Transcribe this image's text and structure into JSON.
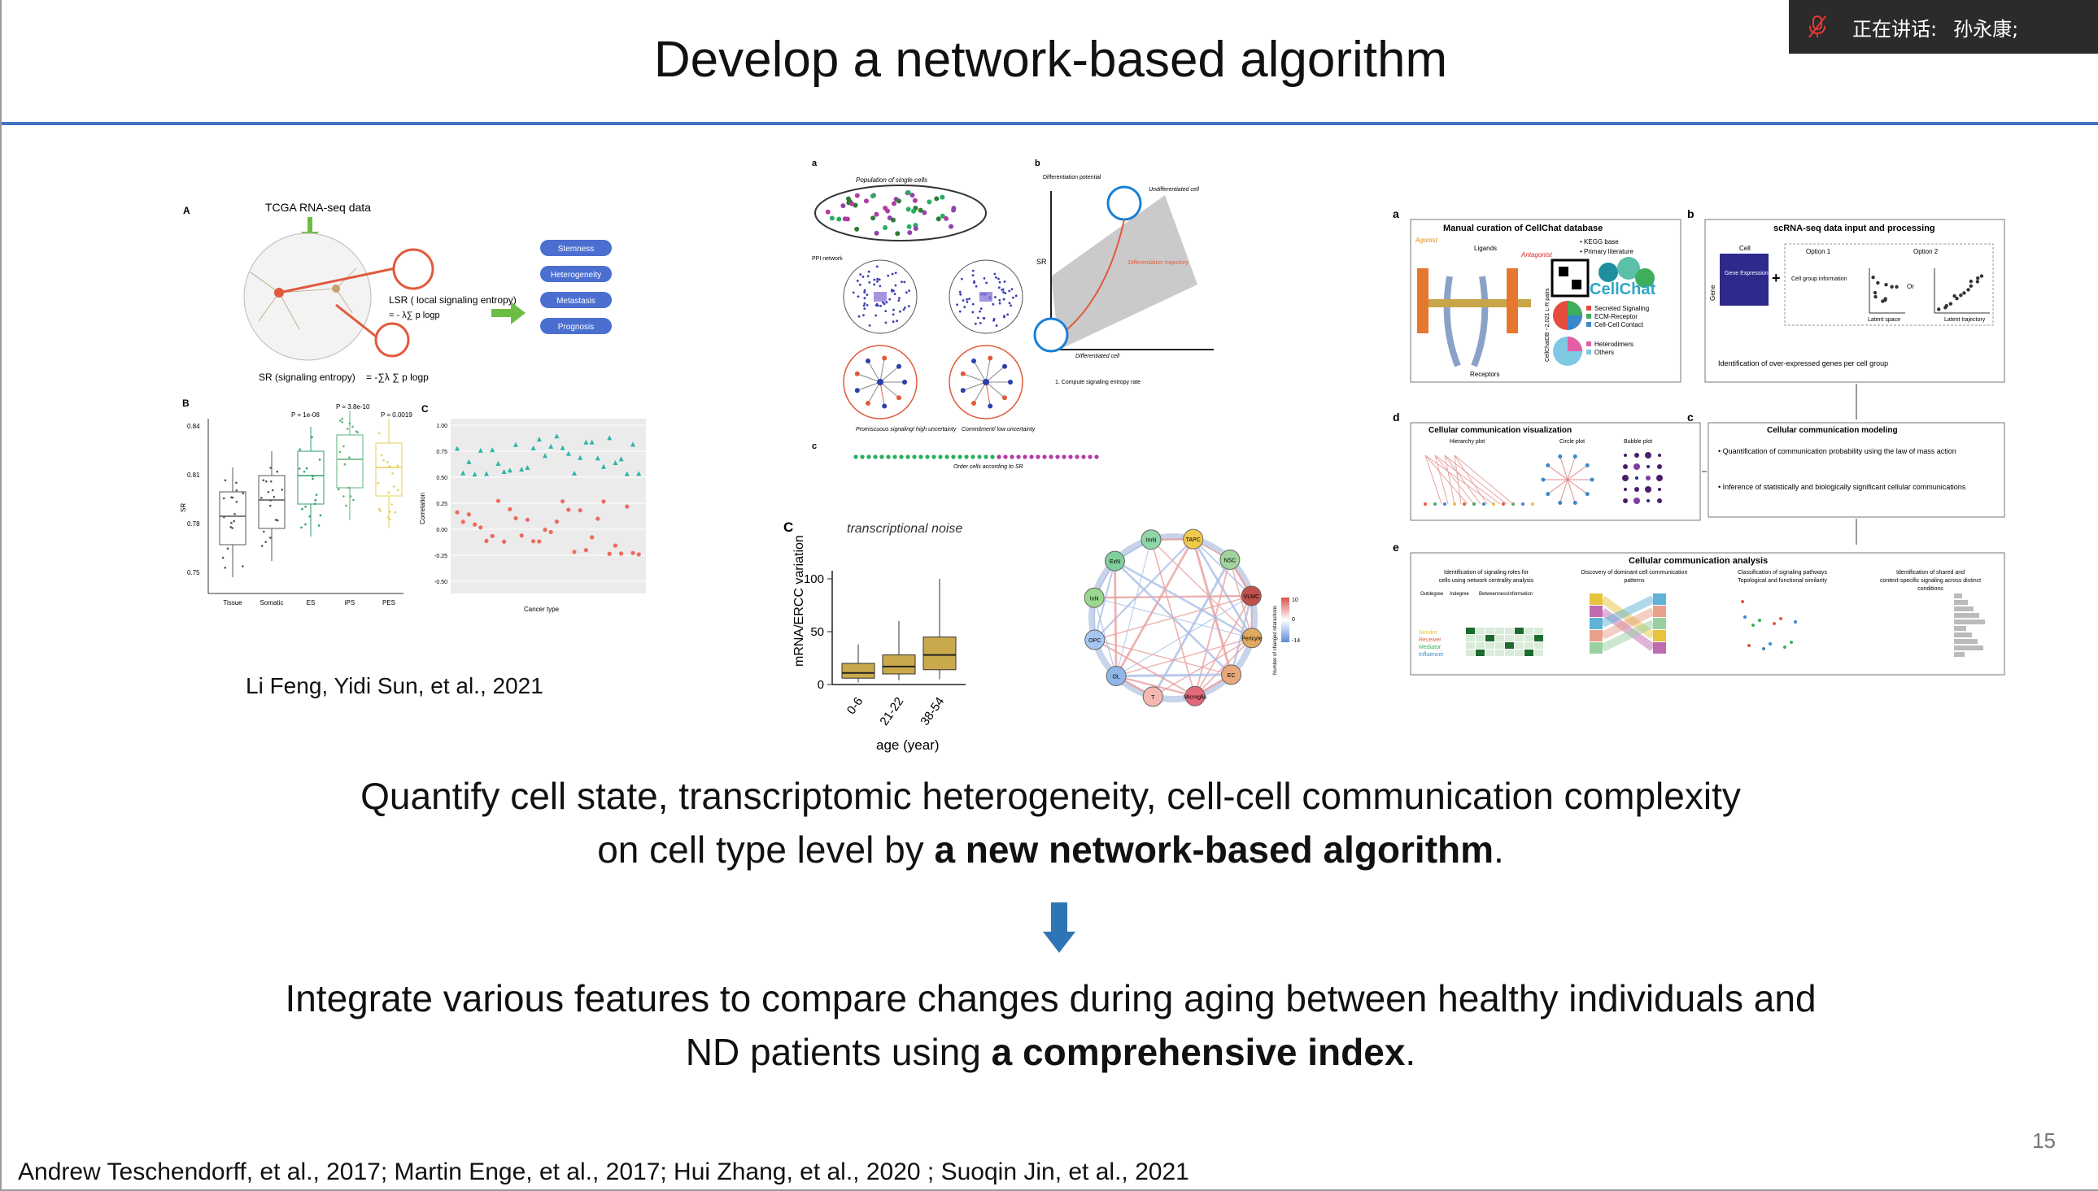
{
  "speaker_bar": {
    "label": "正在讲话:",
    "name": "孙永康;"
  },
  "slide": {
    "title": "Develop a network-based algorithm",
    "page_number": "15",
    "figure_a": {
      "panel_label": "A",
      "header": "TCGA RNA-seq data",
      "lsr_text": "LSR ( local signaling entropy)",
      "sr_text": "SR (signaling entropy)",
      "categories": [
        "Stemness",
        "Heterogeneity",
        "Metastasis",
        "Prognosis"
      ],
      "panel_b_label": "B",
      "panel_c_label": "C",
      "pvalues": [
        "P = 1e-08",
        "P = 3.8e-10",
        "P = 0.0019"
      ],
      "box_groups": [
        "Tissue",
        "Somatic",
        "ES",
        "iPS",
        "PES"
      ],
      "y_ticks_b": [
        "0.84",
        "0.81",
        "0.78",
        "0.75"
      ],
      "y_axis_b": "SR",
      "y_ticks_c": [
        "1.00",
        "0.75",
        "0.50",
        "0.25",
        "0.00",
        "-0.25",
        "-0.50"
      ],
      "y_axis_c": "Correlation",
      "x_axis_c": "Cancer type",
      "citation": "Li Feng, Yidi Sun, et al., 2021"
    },
    "figure_b": {
      "labels": [
        "a",
        "b",
        "c"
      ],
      "population": "Population of single cells",
      "ppi": "PPI network",
      "sr_label": "SR",
      "diff_potential": "Differentiation potential",
      "undiff": "Undifferentiated cell",
      "diff": "Differentiated cell",
      "trajectory": "Differentiation trajectory",
      "compute": "1. Compute signaling entropy rate",
      "order": "Order cells according to SR",
      "promiscuous": "Promiscuous signaling/ high uncertainty",
      "commitment": "Commitment/ low uncertainty"
    },
    "figure_c": {
      "panel_label": "C",
      "title": "transcriptional noise",
      "y_axis": "mRNA/ERCC variation",
      "y_ticks": [
        "100",
        "50",
        "0"
      ],
      "x_ticks": [
        "0-6",
        "21-22",
        "38-54"
      ],
      "x_axis": "age (year)"
    },
    "figure_d": {
      "nodes": [
        "TAPC",
        "NSC",
        "VLMC",
        "Pericyte",
        "EC",
        "Microglia",
        "T",
        "OL",
        "OPC",
        "InN",
        "ExN",
        "ImN"
      ],
      "legend_label": "Number of changed interactions",
      "legend_ticks": [
        "10",
        "0",
        "-14"
      ]
    },
    "figure_e": {
      "panel_a": "a",
      "panel_a_title": "Manual curation of CellChat database",
      "kegg": "• KEGG base",
      "literature": "• Primary literature",
      "agonist": "Agonist",
      "antagonist": "Antagonist",
      "ligands": "Ligands",
      "receptors": "Receptors",
      "cellchat_logo": "CellChat",
      "cellchatdb": "CellChatDB ~2,021 L-R pairs",
      "categories": [
        "Secreted Signaling",
        "ECM-Receptor",
        "Cell-Cell Contact",
        "Heterodimers",
        "Others"
      ],
      "panel_b": "b",
      "panel_b_title": "scRNA-seq data input and processing",
      "cell": "Cell",
      "gene": "Gene",
      "gene_expression": "Gene Expression Profile",
      "option1": "Option 1",
      "option2": "Option 2",
      "cell_group_info": "Cell group information",
      "latent_space": "Latent space",
      "latent_trajectory": "Latent trajectory",
      "or": "Or",
      "identification": "Identification of over-expressed genes per cell group",
      "panel_d": "d",
      "panel_d_title": "Cellular communication visualization",
      "vis_types": [
        "Hierarchy plot",
        "Circle plot",
        "Bubble plot"
      ],
      "panel_c": "c",
      "panel_c_title": "Cellular communication modeling",
      "modeling_1": "• Quantification of communication probability using the law of mass action",
      "modeling_2": "• Inference of statistically and biologically significant cellular communications",
      "panel_e": "e",
      "panel_e_title": "Cellular communication analysis",
      "analysis_cols": [
        "Identification of signaling roles for cells using network centrality analysis",
        "Discovery of dominant cell communication patterns",
        "Classification of signaling pathways Topological and functional similarity",
        "Identification of shared and context-specific signaling across distinct conditions"
      ],
      "centrality": [
        "Outdegree",
        "Indegree",
        "Betweenness",
        "Information"
      ],
      "roles": [
        "Sender",
        "Receiver",
        "Mediator",
        "Influencer"
      ]
    },
    "statement_1_line_1": "Quantify cell state, transcriptomic heterogeneity, cell-cell communication complexity",
    "statement_1_line_2_prefix": "on cell type level by ",
    "statement_1_line_2_bold": "a new network-based algorithm",
    "statement_1_line_2_suffix": ".",
    "statement_2_line_1": "Integrate various features to compare changes during aging between healthy individuals and",
    "statement_2_line_2_prefix": "ND patients using ",
    "statement_2_line_2_bold": "a comprehensive index",
    "statement_2_line_2_suffix": ".",
    "footer_citations": "Andrew Teschendorff, et al., 2017; Martin Enge, et al., 2017; Hui Zhang, et al., 2020 ; Suoqin Jin, et al., 2021"
  },
  "colors": {
    "rule": "#4472c4",
    "arrow": "#2e75b6",
    "category_pill": "#4a6fd1",
    "highlight_red": "#e15a3c",
    "teal": "#2bb5a8",
    "salmon": "#ef6a5f"
  }
}
